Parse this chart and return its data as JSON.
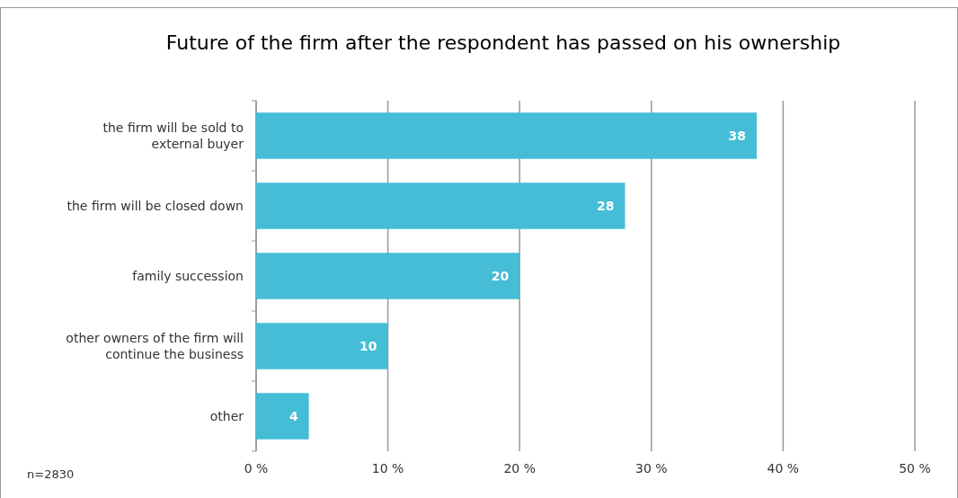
{
  "chart_data": {
    "type": "bar",
    "orientation": "horizontal",
    "title": "Future of the firm after the respondent has passed on his ownership",
    "categories": [
      "the firm will be sold to external buyer",
      "the firm will be closed down",
      "family succession",
      "other owners of the firm will continue the business",
      "other"
    ],
    "values": [
      38,
      28,
      20,
      10,
      4
    ],
    "color": "#45bdd6",
    "data_labels": true,
    "xlim": [
      0,
      50
    ],
    "xticks": [
      {
        "value": 0,
        "label": "0 %"
      },
      {
        "value": 10,
        "label": "10 %"
      },
      {
        "value": 20,
        "label": "20 %"
      },
      {
        "value": 30,
        "label": "30 %"
      },
      {
        "value": 40,
        "label": "40 %"
      },
      {
        "value": 50,
        "label": "50 %"
      }
    ],
    "grid": "x",
    "annotations": [
      "n=2830"
    ]
  }
}
